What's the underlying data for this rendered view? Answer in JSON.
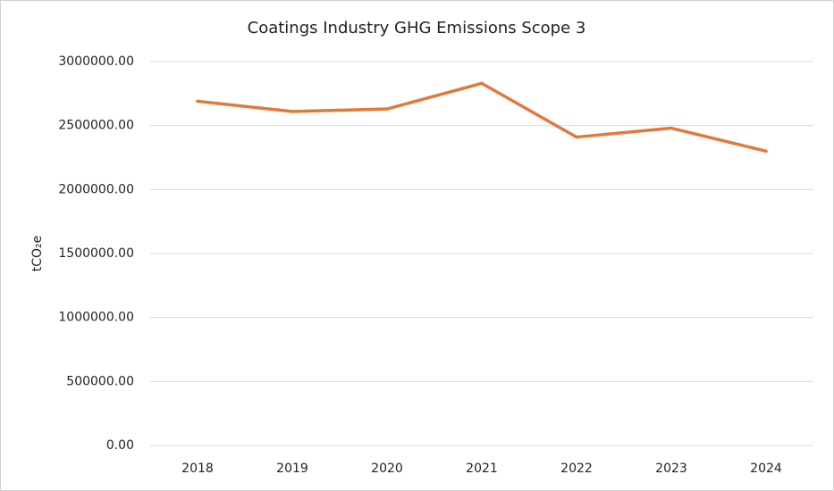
{
  "chart_data": {
    "type": "line",
    "title": "Coatings Industry GHG Emissions Scope 3",
    "y_label": "tCO₂e",
    "categories": [
      "2018",
      "2019",
      "2020",
      "2021",
      "2022",
      "2023",
      "2024"
    ],
    "values": [
      2690000,
      2610000,
      2630000,
      2830000,
      2410000,
      2480000,
      2300000
    ],
    "color": "#e2793a",
    "ylim": [
      0,
      3000000
    ],
    "yticks": [
      {
        "value": 0,
        "label": "0.00"
      },
      {
        "value": 500000,
        "label": "500000.00"
      },
      {
        "value": 1000000,
        "label": "1000000.00"
      },
      {
        "value": 1500000,
        "label": "1500000.00"
      },
      {
        "value": 2000000,
        "label": "2000000.00"
      },
      {
        "value": 2500000,
        "label": "2500000.00"
      },
      {
        "value": 3000000,
        "label": "3000000.00"
      }
    ],
    "grid": true
  }
}
